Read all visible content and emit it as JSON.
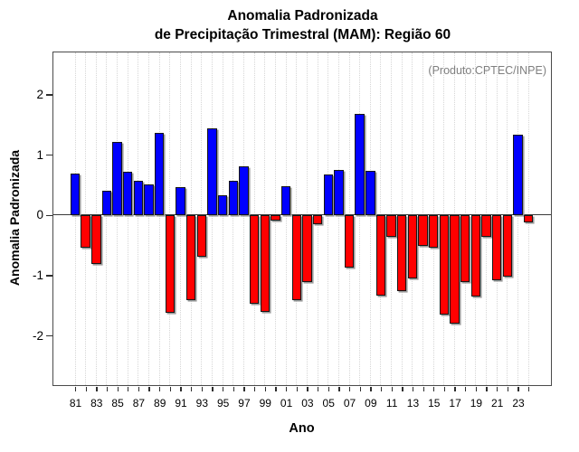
{
  "title": {
    "line1": "Anomalia Padronizada",
    "line2": "de Precipitação Trimestral (MAM): Região 60"
  },
  "colors": {
    "positive": "#0000FF",
    "negative": "#FF0000",
    "annotation": "#7F7F7F",
    "grid": "#D6D6D6",
    "bar_border": "#161616",
    "bar_shadow": "#9C9C9C",
    "axis": "#2E2E2E"
  },
  "chart_data": {
    "type": "bar",
    "title": "Anomalia Padronizada de Precipitação Trimestral (MAM): Região 60",
    "xlabel": "Ano",
    "ylabel": "Anomalia Padronizada",
    "annotation": "(Produto:CPTEC/INPE)",
    "legend": "none",
    "grid": "vertical-dotted",
    "x": [
      1981,
      1982,
      1983,
      1984,
      1985,
      1986,
      1987,
      1988,
      1989,
      1990,
      1991,
      1992,
      1993,
      1994,
      1995,
      1996,
      1997,
      1998,
      1999,
      2000,
      2001,
      2002,
      2003,
      2004,
      2005,
      2006,
      2007,
      2008,
      2009,
      2010,
      2011,
      2012,
      2013,
      2014,
      2015,
      2016,
      2017,
      2018,
      2019,
      2020,
      2021,
      2022,
      2023,
      2024
    ],
    "values": [
      0.69,
      -0.54,
      -0.82,
      0.4,
      1.21,
      0.72,
      0.57,
      0.5,
      1.36,
      -1.63,
      0.46,
      -1.42,
      -0.69,
      1.43,
      0.33,
      0.57,
      0.8,
      -1.48,
      -1.61,
      -0.09,
      0.47,
      -1.41,
      -1.12,
      -0.16,
      0.67,
      0.74,
      -0.88,
      1.67,
      0.73,
      -1.34,
      -0.37,
      -1.27,
      -1.05,
      -0.52,
      -0.55,
      -1.66,
      -1.8,
      -1.12,
      -1.35,
      -0.37,
      -1.09,
      -1.03,
      1.33,
      -0.12
    ],
    "x_tick_labels": [
      "81",
      "83",
      "85",
      "87",
      "89",
      "91",
      "93",
      "95",
      "97",
      "99",
      "01",
      "03",
      "05",
      "07",
      "09",
      "11",
      "13",
      "15",
      "17",
      "19",
      "21",
      "23"
    ],
    "y_ticks": [
      2,
      1,
      0,
      -1,
      -2
    ],
    "ylim": [
      -2.8,
      2.7
    ]
  }
}
